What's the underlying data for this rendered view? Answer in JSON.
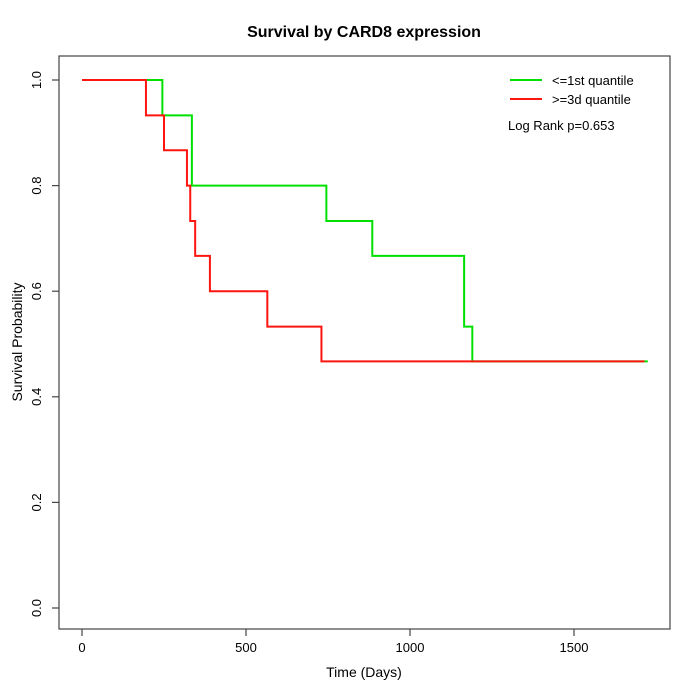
{
  "chart_data": {
    "type": "line",
    "subtype": "kaplan-meier-step",
    "title": "Survival by CARD8 expression",
    "xlabel": "Time (Days)",
    "ylabel": "Survival Probability",
    "xlim": [
      0,
      1800
    ],
    "ylim": [
      0.0,
      1.0
    ],
    "x_ticks": [
      0,
      500,
      1000,
      1500
    ],
    "y_ticks": [
      0.0,
      0.2,
      0.4,
      0.6,
      0.8,
      1.0
    ],
    "grid": false,
    "legend_position": "top-right-inside",
    "annotation": "Log Rank p=0.653",
    "frame_color": "#444444",
    "series": [
      {
        "name": "<=1st quantile",
        "color": "#00e000",
        "points": [
          [
            0,
            1.0
          ],
          [
            245,
            0.933
          ],
          [
            335,
            0.8
          ],
          [
            745,
            0.733
          ],
          [
            885,
            0.667
          ],
          [
            1165,
            0.533
          ],
          [
            1190,
            0.467
          ],
          [
            1725,
            0.467
          ]
        ]
      },
      {
        "name": ">=3d quantile",
        "color": "#ff1510",
        "points": [
          [
            0,
            1.0
          ],
          [
            195,
            0.933
          ],
          [
            250,
            0.867
          ],
          [
            320,
            0.8
          ],
          [
            330,
            0.733
          ],
          [
            345,
            0.667
          ],
          [
            390,
            0.6
          ],
          [
            565,
            0.533
          ],
          [
            730,
            0.467
          ],
          [
            1715,
            0.467
          ]
        ]
      }
    ]
  }
}
